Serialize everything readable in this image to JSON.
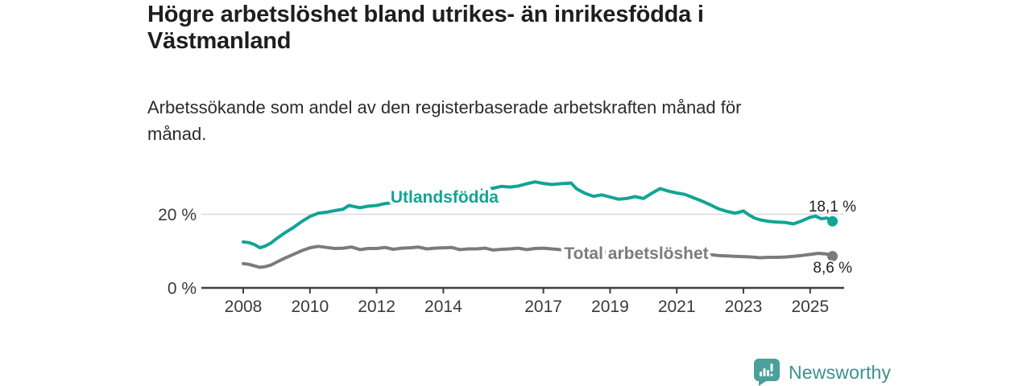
{
  "header": {
    "title_line1": "Högre arbetslöshet bland utrikes- än inrikesfödda i",
    "title_line2": "Västmanland",
    "subtitle_line1": "Arbetssökande som andel av den registerbaserade arbetskraften månad för",
    "subtitle_line2": "månad."
  },
  "footer": {
    "brand": "Newsworthy"
  },
  "colors": {
    "accent_teal": "#12a495",
    "series_gray": "#7b7b7e",
    "grid": "#dadada",
    "axis": "#3f3f3f",
    "axis_text": "#3a3a3a",
    "value_text": "#1f1f1f",
    "logo_teal": "#4aa09a",
    "logo_text": "#3a928c"
  },
  "chart_data": {
    "type": "line",
    "title": "Högre arbetslöshet bland utrikes- än inrikesfödda i Västmanland",
    "subtitle": "Arbetssökande som andel av den registerbaserade arbetskraften månad för månad.",
    "unit": "%",
    "grid": true,
    "legend_position": "inline-labels",
    "x_axis": {
      "ticks": [
        2008,
        2010,
        2012,
        2014,
        2017,
        2019,
        2021,
        2023,
        2025
      ],
      "range": [
        2007.7,
        2025.95
      ]
    },
    "y_axis": {
      "ticks": [
        {
          "value": 0,
          "label": "0 %"
        },
        {
          "value": 20,
          "label": "20 %"
        }
      ],
      "range": [
        0,
        30
      ]
    },
    "series": [
      {
        "name": "Utlandsfödda",
        "color": "#12a495",
        "end_value": 18.1,
        "end_label": "18,1 %",
        "points": [
          [
            2008.0,
            12.5
          ],
          [
            2008.17,
            12.3
          ],
          [
            2008.33,
            11.8
          ],
          [
            2008.5,
            10.9
          ],
          [
            2008.67,
            11.4
          ],
          [
            2008.83,
            12.2
          ],
          [
            2009.0,
            13.4
          ],
          [
            2009.25,
            15.0
          ],
          [
            2009.5,
            16.4
          ],
          [
            2009.75,
            18.0
          ],
          [
            2010.0,
            19.4
          ],
          [
            2010.25,
            20.3
          ],
          [
            2010.5,
            20.6
          ],
          [
            2010.75,
            21.0
          ],
          [
            2011.0,
            21.4
          ],
          [
            2011.17,
            22.4
          ],
          [
            2011.33,
            22.1
          ],
          [
            2011.5,
            21.8
          ],
          [
            2011.75,
            22.2
          ],
          [
            2012.0,
            22.4
          ],
          [
            2012.25,
            22.9
          ],
          [
            2012.5,
            23.2
          ],
          [
            2012.75,
            23.5
          ],
          [
            2013.0,
            23.7
          ],
          [
            2013.5,
            24.2
          ],
          [
            2014.0,
            24.8
          ],
          [
            2014.5,
            25.6
          ],
          [
            2015.0,
            26.3
          ],
          [
            2015.5,
            27.1
          ],
          [
            2015.75,
            27.6
          ],
          [
            2016.0,
            27.4
          ],
          [
            2016.25,
            27.7
          ],
          [
            2016.5,
            28.3
          ],
          [
            2016.75,
            28.8
          ],
          [
            2017.0,
            28.4
          ],
          [
            2017.25,
            28.1
          ],
          [
            2017.5,
            28.3
          ],
          [
            2017.83,
            28.5
          ],
          [
            2018.0,
            26.9
          ],
          [
            2018.25,
            25.7
          ],
          [
            2018.5,
            24.9
          ],
          [
            2018.75,
            25.3
          ],
          [
            2019.0,
            24.7
          ],
          [
            2019.25,
            24.1
          ],
          [
            2019.5,
            24.3
          ],
          [
            2019.75,
            24.8
          ],
          [
            2020.0,
            24.3
          ],
          [
            2020.25,
            25.7
          ],
          [
            2020.5,
            27.0
          ],
          [
            2020.75,
            26.3
          ],
          [
            2021.0,
            25.8
          ],
          [
            2021.25,
            25.4
          ],
          [
            2021.5,
            24.5
          ],
          [
            2021.75,
            23.6
          ],
          [
            2022.0,
            22.6
          ],
          [
            2022.25,
            21.5
          ],
          [
            2022.5,
            20.8
          ],
          [
            2022.75,
            20.3
          ],
          [
            2023.0,
            20.9
          ],
          [
            2023.17,
            19.8
          ],
          [
            2023.33,
            19.0
          ],
          [
            2023.5,
            18.5
          ],
          [
            2023.75,
            18.1
          ],
          [
            2024.0,
            17.9
          ],
          [
            2024.25,
            17.8
          ],
          [
            2024.5,
            17.4
          ],
          [
            2024.75,
            18.2
          ],
          [
            2025.0,
            19.2
          ],
          [
            2025.17,
            19.5
          ],
          [
            2025.33,
            18.8
          ],
          [
            2025.5,
            19.0
          ],
          [
            2025.67,
            18.1
          ]
        ]
      },
      {
        "name": "Total arbetslöshet",
        "color": "#7b7b7e",
        "end_value": 8.6,
        "end_label": "8,6 %",
        "points": [
          [
            2008.0,
            6.6
          ],
          [
            2008.17,
            6.4
          ],
          [
            2008.33,
            6.0
          ],
          [
            2008.5,
            5.6
          ],
          [
            2008.67,
            5.8
          ],
          [
            2008.83,
            6.2
          ],
          [
            2009.0,
            7.0
          ],
          [
            2009.25,
            8.1
          ],
          [
            2009.5,
            9.1
          ],
          [
            2009.75,
            10.1
          ],
          [
            2010.0,
            10.9
          ],
          [
            2010.25,
            11.3
          ],
          [
            2010.5,
            11.0
          ],
          [
            2010.75,
            10.7
          ],
          [
            2011.0,
            10.8
          ],
          [
            2011.25,
            11.1
          ],
          [
            2011.5,
            10.4
          ],
          [
            2011.75,
            10.7
          ],
          [
            2012.0,
            10.7
          ],
          [
            2012.25,
            11.0
          ],
          [
            2012.5,
            10.5
          ],
          [
            2012.75,
            10.8
          ],
          [
            2013.0,
            10.9
          ],
          [
            2013.25,
            11.1
          ],
          [
            2013.5,
            10.6
          ],
          [
            2013.75,
            10.8
          ],
          [
            2014.0,
            10.9
          ],
          [
            2014.25,
            11.0
          ],
          [
            2014.5,
            10.4
          ],
          [
            2014.75,
            10.6
          ],
          [
            2015.0,
            10.6
          ],
          [
            2015.25,
            10.8
          ],
          [
            2015.5,
            10.3
          ],
          [
            2015.75,
            10.5
          ],
          [
            2016.0,
            10.6
          ],
          [
            2016.25,
            10.8
          ],
          [
            2016.5,
            10.4
          ],
          [
            2016.75,
            10.7
          ],
          [
            2017.0,
            10.8
          ],
          [
            2017.25,
            10.6
          ],
          [
            2017.5,
            10.4
          ],
          [
            2018.0,
            10.2
          ],
          [
            2018.5,
            9.9
          ],
          [
            2019.0,
            9.7
          ],
          [
            2019.5,
            9.6
          ],
          [
            2020.0,
            9.9
          ],
          [
            2020.5,
            10.6
          ],
          [
            2021.0,
            10.3
          ],
          [
            2021.5,
            9.6
          ],
          [
            2022.0,
            9.0
          ],
          [
            2022.25,
            8.8
          ],
          [
            2022.5,
            8.7
          ],
          [
            2022.75,
            8.6
          ],
          [
            2023.0,
            8.5
          ],
          [
            2023.25,
            8.4
          ],
          [
            2023.5,
            8.2
          ],
          [
            2023.75,
            8.3
          ],
          [
            2024.0,
            8.3
          ],
          [
            2024.25,
            8.4
          ],
          [
            2024.5,
            8.6
          ],
          [
            2024.75,
            8.8
          ],
          [
            2025.0,
            9.1
          ],
          [
            2025.25,
            9.4
          ],
          [
            2025.5,
            9.2
          ],
          [
            2025.67,
            8.6
          ]
        ]
      }
    ]
  }
}
